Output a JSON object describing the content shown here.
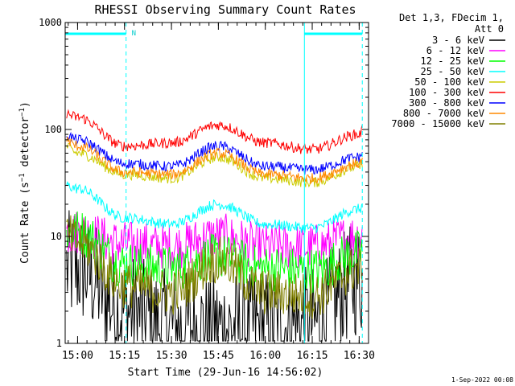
{
  "chart_data": {
    "type": "line",
    "title": "RHESSI Observing Summary Count Rates",
    "xlabel": "Start Time (29-Jun-16 14:56:02)",
    "ylabel": "Count Rate (s⁻¹ detector⁻¹)",
    "ylabel_main": "Count Rate (s",
    "ylabel_sup1": "−1",
    "ylabel_mid": " detector",
    "ylabel_sup2": "−1",
    "ylabel_end": ")",
    "y_scale": "log",
    "ylim": [
      1,
      1000
    ],
    "y_ticks": [
      "1",
      "10",
      "100",
      "1000"
    ],
    "xlim": [
      "14:56:02",
      "16:33:00"
    ],
    "x_ticks": [
      "15:00",
      "15:15",
      "15:30",
      "15:45",
      "16:00",
      "16:15",
      "16:30"
    ],
    "legend_header": [
      "Det 1,3, FDecim 1,",
      "Att 0"
    ],
    "date_stamp": "1-Sep-2022 00:08",
    "flag_label": "N",
    "flag_intervals": [
      [
        "14:56:02",
        "15:15:30"
      ],
      [
        "16:12:30",
        "16:31:00"
      ]
    ],
    "dashed_markers": [
      "14:56:02",
      "15:15:30",
      "16:31:00"
    ],
    "solid_markers": [
      "14:56:02",
      "16:12:30"
    ],
    "shape_nodes": [
      "14:56",
      "15:00",
      "15:15",
      "15:30",
      "15:45",
      "16:00",
      "16:15",
      "16:30",
      "16:33"
    ],
    "series": [
      {
        "name": "3 - 6 keV",
        "color": "#000000",
        "values": [
          5.0,
          5.0,
          2.0,
          1.4,
          1.4,
          1.4,
          1.5,
          4.0,
          4.0
        ]
      },
      {
        "name": "6 - 12 keV",
        "color": "#ff00ff",
        "values": [
          11.0,
          11.0,
          8.5,
          8.0,
          10.0,
          8.0,
          8.0,
          10.0,
          11.0
        ]
      },
      {
        "name": "12 - 25 keV",
        "color": "#00ff00",
        "values": [
          11.0,
          11.0,
          5.5,
          5.0,
          6.5,
          5.0,
          4.8,
          7.0,
          10.0
        ]
      },
      {
        "name": "25 - 50 keV",
        "color": "#00ffff",
        "values": [
          30.0,
          28.0,
          15.0,
          13.0,
          20.0,
          13.0,
          12.0,
          18.0,
          25.0
        ]
      },
      {
        "name": "50 - 100 keV",
        "color": "#cccc00",
        "values": [
          70.0,
          60.0,
          38.0,
          35.0,
          55.0,
          35.0,
          32.0,
          45.0,
          65.0
        ]
      },
      {
        "name": "100 - 300 keV",
        "color": "#ff0000",
        "values": [
          140.0,
          130.0,
          70.0,
          75.0,
          110.0,
          75.0,
          65.0,
          90.0,
          140.0
        ]
      },
      {
        "name": "300 - 800 keV",
        "color": "#0000ff",
        "values": [
          90.0,
          80.0,
          48.0,
          45.0,
          70.0,
          45.0,
          42.0,
          55.0,
          85.0
        ]
      },
      {
        "name": "800 - 7000 keV",
        "color": "#ff8800",
        "values": [
          80.0,
          70.0,
          40.0,
          38.0,
          60.0,
          38.0,
          35.0,
          48.0,
          75.0
        ]
      },
      {
        "name": "7000 - 15000 keV",
        "color": "#808000",
        "values": [
          10.0,
          9.0,
          3.5,
          3.0,
          6.0,
          3.0,
          2.8,
          5.0,
          10.0
        ]
      }
    ]
  }
}
